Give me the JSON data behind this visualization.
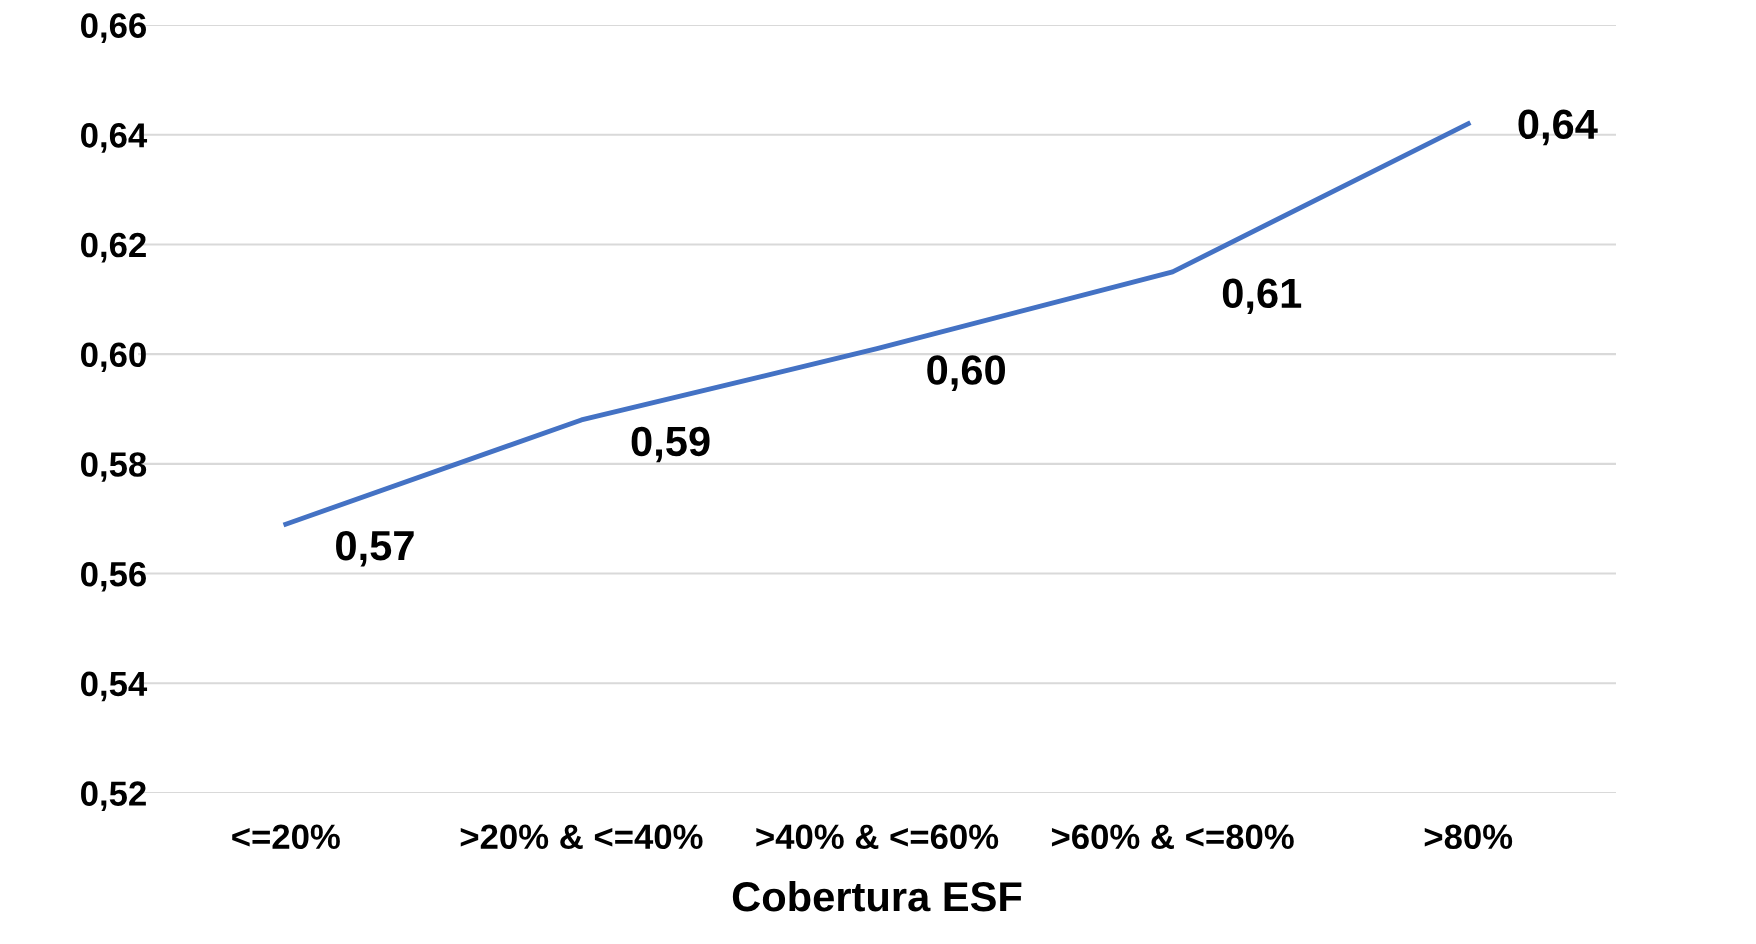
{
  "chart_data": {
    "type": "line",
    "xlabel": "Cobertura ESF",
    "categories": [
      "<=20%",
      ">20% & <=40%",
      ">40% & <=60%",
      ">60% & <=80%",
      ">80%"
    ],
    "series": [
      {
        "color": "#4472c4",
        "values": [
          0.569,
          0.588,
          0.601,
          0.615,
          0.642
        ],
        "value_labels": [
          "0,57",
          "0,59",
          "0,60",
          "0,61",
          "0,64"
        ]
      }
    ],
    "ylim": [
      0.52,
      0.66
    ],
    "yticks": [
      {
        "value": 0.52,
        "label": "0,52"
      },
      {
        "value": 0.54,
        "label": "0,54"
      },
      {
        "value": 0.56,
        "label": "0,56"
      },
      {
        "value": 0.58,
        "label": "0,58"
      },
      {
        "value": 0.6,
        "label": "0,60"
      },
      {
        "value": 0.62,
        "label": "0,62"
      },
      {
        "value": 0.64,
        "label": "0,64"
      },
      {
        "value": 0.66,
        "label": "0,66"
      }
    ],
    "grid": "y",
    "marker": "none",
    "line_style": "solid"
  }
}
